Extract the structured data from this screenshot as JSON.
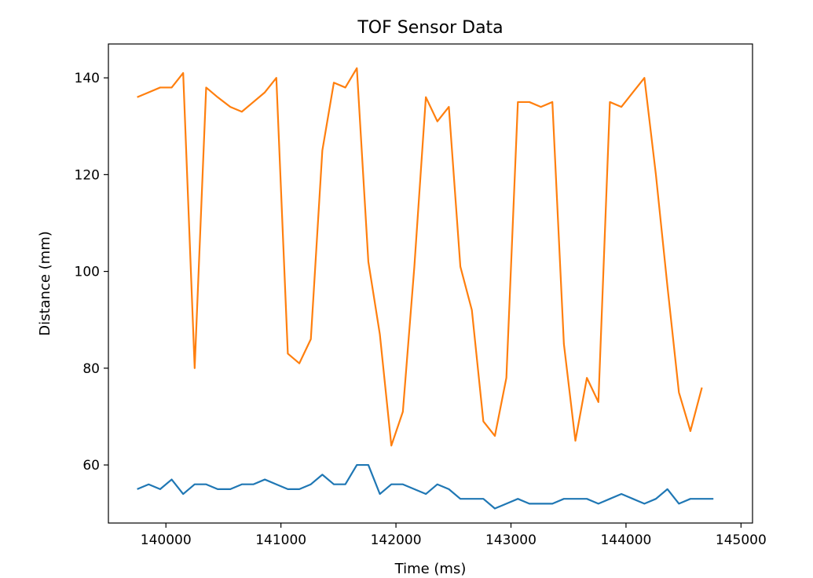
{
  "chart_data": {
    "type": "line",
    "title": "TOF Sensor Data",
    "xlabel": "Time (ms)",
    "ylabel": "Distance (mm)",
    "xlim": [
      139500,
      145100
    ],
    "ylim": [
      48,
      147
    ],
    "xticks": [
      140000,
      141000,
      142000,
      143000,
      144000,
      145000
    ],
    "yticks": [
      60,
      80,
      100,
      120,
      140
    ],
    "grid": false,
    "series": [
      {
        "color": "#1f77b4",
        "points": [
          [
            139750,
            55
          ],
          [
            139850,
            56
          ],
          [
            139950,
            55
          ],
          [
            140050,
            57
          ],
          [
            140150,
            54
          ],
          [
            140250,
            56
          ],
          [
            140350,
            56
          ],
          [
            140450,
            55
          ],
          [
            140560,
            55
          ],
          [
            140660,
            56
          ],
          [
            140760,
            56
          ],
          [
            140860,
            57
          ],
          [
            140960,
            56
          ],
          [
            141060,
            55
          ],
          [
            141160,
            55
          ],
          [
            141260,
            56
          ],
          [
            141360,
            58
          ],
          [
            141460,
            56
          ],
          [
            141560,
            56
          ],
          [
            141660,
            60
          ],
          [
            141760,
            60
          ],
          [
            141860,
            54
          ],
          [
            141960,
            56
          ],
          [
            142060,
            56
          ],
          [
            142160,
            55
          ],
          [
            142260,
            54
          ],
          [
            142360,
            56
          ],
          [
            142460,
            55
          ],
          [
            142560,
            53
          ],
          [
            142660,
            53
          ],
          [
            142760,
            53
          ],
          [
            142860,
            51
          ],
          [
            142960,
            52
          ],
          [
            143060,
            53
          ],
          [
            143160,
            52
          ],
          [
            143260,
            52
          ],
          [
            143360,
            52
          ],
          [
            143460,
            53
          ],
          [
            143560,
            53
          ],
          [
            143660,
            53
          ],
          [
            143760,
            52
          ],
          [
            143860,
            53
          ],
          [
            143960,
            54
          ],
          [
            144060,
            53
          ],
          [
            144160,
            52
          ],
          [
            144260,
            53
          ],
          [
            144360,
            55
          ],
          [
            144460,
            52
          ],
          [
            144560,
            53
          ],
          [
            144660,
            53
          ],
          [
            144760,
            53
          ]
        ]
      },
      {
        "color": "#ff7f0e",
        "points": [
          [
            139750,
            136
          ],
          [
            139850,
            137
          ],
          [
            139950,
            138
          ],
          [
            140050,
            138
          ],
          [
            140150,
            141
          ],
          [
            140250,
            80
          ],
          [
            140350,
            138
          ],
          [
            140450,
            136
          ],
          [
            140560,
            134
          ],
          [
            140660,
            133
          ],
          [
            140760,
            135
          ],
          [
            140860,
            137
          ],
          [
            140960,
            140
          ],
          [
            141060,
            83
          ],
          [
            141160,
            81
          ],
          [
            141260,
            86
          ],
          [
            141360,
            125
          ],
          [
            141460,
            139
          ],
          [
            141560,
            138
          ],
          [
            141660,
            142
          ],
          [
            141760,
            102
          ],
          [
            141860,
            87
          ],
          [
            141960,
            64
          ],
          [
            142060,
            71
          ],
          [
            142160,
            101
          ],
          [
            142260,
            136
          ],
          [
            142360,
            131
          ],
          [
            142460,
            134
          ],
          [
            142560,
            101
          ],
          [
            142660,
            92
          ],
          [
            142760,
            69
          ],
          [
            142860,
            66
          ],
          [
            142960,
            78
          ],
          [
            143060,
            135
          ],
          [
            143160,
            135
          ],
          [
            143260,
            134
          ],
          [
            143360,
            135
          ],
          [
            143460,
            85
          ],
          [
            143560,
            65
          ],
          [
            143660,
            78
          ],
          [
            143760,
            73
          ],
          [
            143860,
            135
          ],
          [
            143960,
            134
          ],
          [
            144060,
            137
          ],
          [
            144160,
            140
          ],
          [
            144260,
            120
          ],
          [
            144360,
            97
          ],
          [
            144460,
            75
          ],
          [
            144560,
            67
          ],
          [
            144660,
            76
          ]
        ]
      }
    ]
  }
}
